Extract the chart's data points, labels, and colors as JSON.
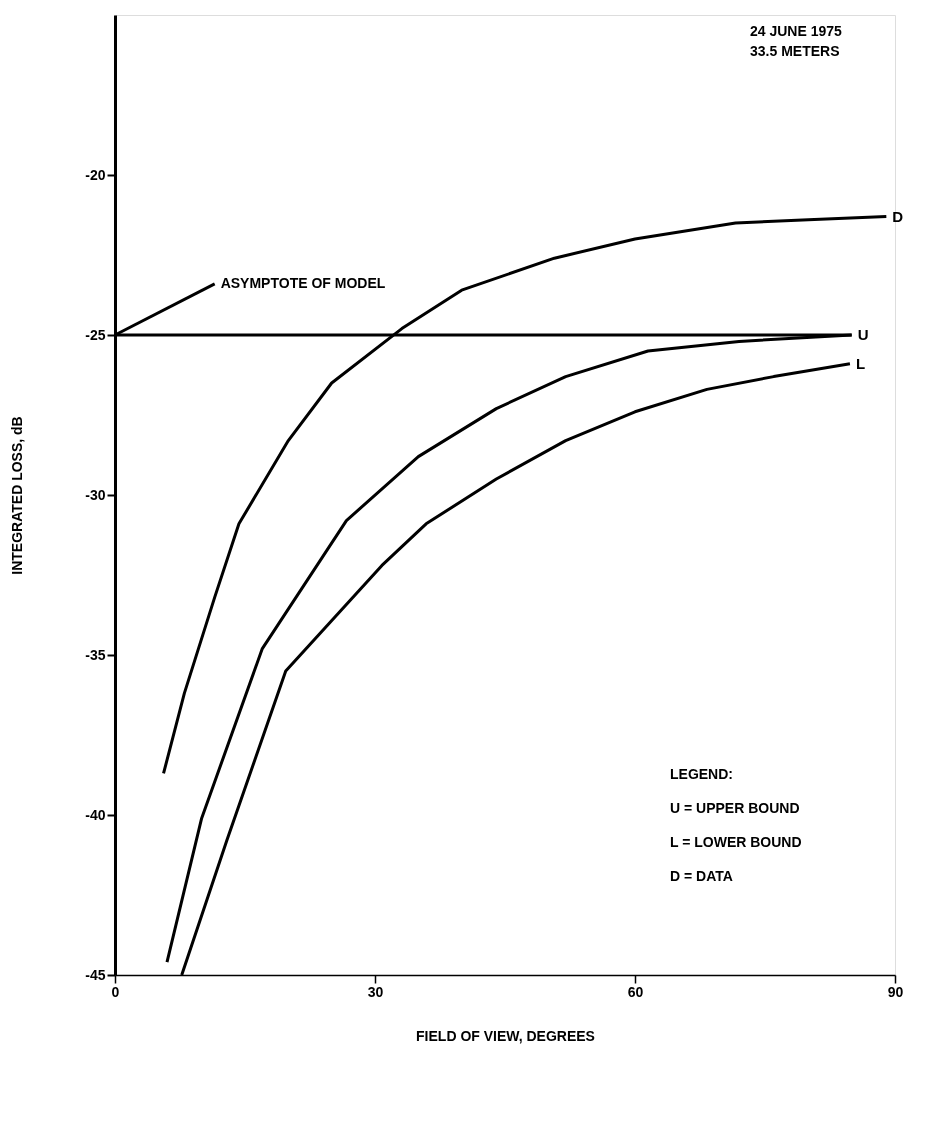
{
  "chart_data": {
    "type": "line",
    "xlabel": "FIELD OF VIEW, DEGREES",
    "ylabel": "INTEGRATED LOSS, dB",
    "xlim": [
      0,
      90
    ],
    "xticks": [
      0,
      30,
      60,
      90
    ],
    "ylim": [
      -45,
      -15
    ],
    "yticks": [
      -45,
      -40,
      -35,
      -30,
      -25,
      -20
    ],
    "grid": false,
    "marker": "none",
    "line_style": "solid",
    "series": [
      {
        "name": "D",
        "color": "#000000",
        "x": [
          5.6,
          8,
          11.5,
          14.3,
          20,
          25,
          33.1,
          40,
          50.7,
          60,
          71.6,
          80,
          89
        ],
        "values": [
          -38.7,
          -36.2,
          -33.2,
          -30.9,
          -28.3,
          -26.5,
          -24.8,
          -23.6,
          -22.6,
          -22,
          -21.5,
          -21.4,
          -21.3
        ]
      },
      {
        "name": "U",
        "color": "#000000",
        "x": [
          6,
          10,
          17,
          26.7,
          35,
          44,
          52,
          61.5,
          72,
          85
        ],
        "values": [
          -44.6,
          -40.1,
          -34.8,
          -30.8,
          -28.8,
          -27.3,
          -26.3,
          -25.5,
          -25.2,
          -25
        ]
      },
      {
        "name": "L",
        "color": "#000000",
        "x": [
          7.7,
          12.9,
          19.7,
          30.8,
          35.9,
          44,
          52,
          60,
          68.3,
          76,
          84.8
        ],
        "values": [
          -45,
          -40.8,
          -35.5,
          -32.2,
          -30.9,
          -29.5,
          -28.3,
          -27.4,
          -26.7,
          -26.3,
          -25.9
        ]
      },
      {
        "color": "#000000",
        "x": [
          0,
          85
        ],
        "values": [
          -25,
          -25
        ]
      }
    ],
    "annotations": [
      {
        "text": "ASYMPTOTE OF MODEL",
        "x": 0,
        "y": -25
      },
      "24 JUNE 1975",
      "33.5 METERS",
      "LEGEND:",
      "U = UPPER BOUND",
      "L = LOWER BOUND",
      "D = DATA"
    ]
  }
}
